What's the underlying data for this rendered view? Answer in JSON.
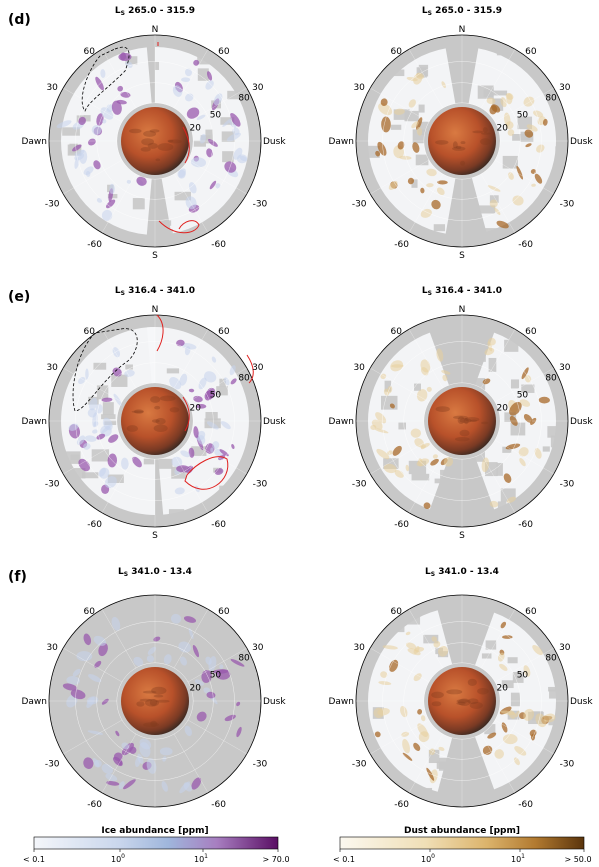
{
  "figure": {
    "rows": [
      {
        "letter": "(d)",
        "title_prefix": "L",
        "title_sub": "S",
        "title_range": " 265.0 - 315.9",
        "left_title_range": " 265.0 - 315.9",
        "right_title_range": " 265.0 - 315.9"
      },
      {
        "letter": "(e)",
        "title_prefix": "L",
        "title_sub": "S",
        "left_title_range": " 316.4 - 341.0",
        "right_title_range": " 316.4 - 341.0"
      },
      {
        "letter": "(f)",
        "title_prefix": "L",
        "title_sub": "S",
        "left_title_range": " 341.0 - 13.4",
        "right_title_range": " 341.0 - 13.4"
      }
    ],
    "polar_labels": {
      "north": "N",
      "south": "S",
      "dawn": "Dawn",
      "dusk": "Dusk",
      "lat_left": [
        "60",
        "30",
        "-30",
        "-60"
      ],
      "lat_right": [
        "60",
        "30",
        "-30",
        "-60"
      ],
      "inner": [
        "80",
        "50",
        "20"
      ]
    },
    "colorbars": {
      "ice": {
        "label": "Ice abundance [ppm]",
        "ticks": [
          "< 0.1",
          "10",
          "10",
          "> 70.0"
        ],
        "tick_exp": [
          "",
          "0",
          "1",
          ""
        ],
        "color_low": "#f4f6fa",
        "color_mid": "#9fb6dc",
        "color_high": "#6a1a6e"
      },
      "dust": {
        "label": "Dust abundance [ppm]",
        "ticks": [
          "< 0.1",
          "10",
          "10",
          "> 50.0"
        ],
        "tick_exp": [
          "",
          "0",
          "1",
          ""
        ],
        "color_low": "#fbf8f0",
        "color_mid": "#e2c17e",
        "color_high": "#6e4210"
      }
    },
    "colors": {
      "disk_bg": "#c8c8c8",
      "planet": "#c2562a",
      "ice_hi": "#9a5aae",
      "ice_lo": "#c6d4ec",
      "dust_hi": "#a86a2a",
      "dust_lo": "#e8cf9c",
      "contour_red": "#e0201e",
      "contour_black": "#000000"
    }
  }
}
